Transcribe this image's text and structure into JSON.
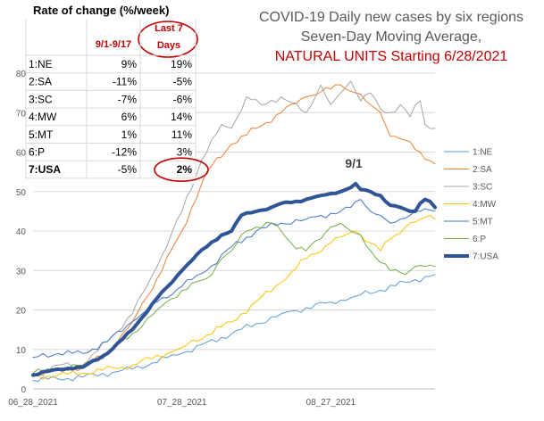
{
  "chart_data": {
    "type": "line",
    "title_lines": [
      {
        "text": "COVID-19 Daily new cases by six regions",
        "color": "#595959"
      },
      {
        "text": "Seven-Day Moving Average,",
        "color": "#595959"
      },
      {
        "text": "NATURAL UNITS Starting 6/28/2021",
        "color": "#c00000"
      }
    ],
    "xlabel": "",
    "ylabel": "",
    "ylim": [
      0,
      80
    ],
    "y_ticks": [
      0,
      10,
      20,
      30,
      40,
      50,
      60,
      70,
      80
    ],
    "x_ticks": [
      {
        "index": 0,
        "label": "06_28_2021"
      },
      {
        "index": 30,
        "label": "07_28_2021"
      },
      {
        "index": 60,
        "label": "08_27_2021"
      }
    ],
    "n_points": 82,
    "grid": true,
    "legend_position": "right",
    "annotation": {
      "text": "9/1",
      "index": 65,
      "value": 52
    },
    "series": [
      {
        "name": "1:NE",
        "color": "#5b9bd5",
        "width": 1,
        "keypoints": [
          [
            0,
            2.2
          ],
          [
            10,
            3
          ],
          [
            20,
            5
          ],
          [
            30,
            9
          ],
          [
            40,
            14
          ],
          [
            50,
            19
          ],
          [
            60,
            22
          ],
          [
            65,
            23.5
          ],
          [
            70,
            25
          ],
          [
            75,
            27
          ],
          [
            81,
            29
          ]
        ]
      },
      {
        "name": "2:SA",
        "color": "#ed7d31",
        "width": 1,
        "keypoints": [
          [
            0,
            3.5
          ],
          [
            5,
            5
          ],
          [
            10,
            5.5
          ],
          [
            15,
            9
          ],
          [
            20,
            17
          ],
          [
            25,
            28
          ],
          [
            30,
            40
          ],
          [
            35,
            55
          ],
          [
            40,
            62
          ],
          [
            45,
            66
          ],
          [
            50,
            70
          ],
          [
            55,
            74
          ],
          [
            60,
            76
          ],
          [
            62,
            77
          ],
          [
            65,
            75
          ],
          [
            68,
            72
          ],
          [
            70,
            70
          ],
          [
            72,
            64
          ],
          [
            75,
            63
          ],
          [
            78,
            60
          ],
          [
            81,
            57
          ]
        ]
      },
      {
        "name": "3:SC",
        "color": "#a5a5a5",
        "width": 1,
        "keypoints": [
          [
            0,
            3.5
          ],
          [
            5,
            6
          ],
          [
            10,
            6
          ],
          [
            15,
            12
          ],
          [
            20,
            19
          ],
          [
            25,
            31
          ],
          [
            30,
            45
          ],
          [
            34,
            58
          ],
          [
            38,
            67
          ],
          [
            40,
            66
          ],
          [
            43,
            74
          ],
          [
            46,
            72
          ],
          [
            50,
            74
          ],
          [
            55,
            70
          ],
          [
            58,
            77
          ],
          [
            60,
            72
          ],
          [
            62,
            75
          ],
          [
            64,
            78
          ],
          [
            66,
            73
          ],
          [
            68,
            75
          ],
          [
            70,
            71
          ],
          [
            72,
            70
          ],
          [
            74,
            72
          ],
          [
            76,
            69
          ],
          [
            78,
            73
          ],
          [
            79,
            67
          ],
          [
            81,
            66
          ]
        ]
      },
      {
        "name": "4:MW",
        "color": "#ffc000",
        "width": 1,
        "keypoints": [
          [
            0,
            3
          ],
          [
            10,
            4
          ],
          [
            20,
            6
          ],
          [
            30,
            10.5
          ],
          [
            40,
            17
          ],
          [
            50,
            27
          ],
          [
            55,
            33
          ],
          [
            60,
            37
          ],
          [
            65,
            40
          ],
          [
            68,
            37
          ],
          [
            70,
            35
          ],
          [
            72,
            38
          ],
          [
            75,
            41
          ],
          [
            78,
            43
          ],
          [
            80,
            44
          ],
          [
            81,
            43
          ]
        ]
      },
      {
        "name": "5:MT",
        "color": "#4472c4",
        "width": 1,
        "keypoints": [
          [
            0,
            8
          ],
          [
            5,
            9
          ],
          [
            10,
            9
          ],
          [
            15,
            12
          ],
          [
            20,
            17
          ],
          [
            25,
            22
          ],
          [
            30,
            26
          ],
          [
            35,
            30
          ],
          [
            40,
            36
          ],
          [
            45,
            40
          ],
          [
            50,
            42
          ],
          [
            55,
            43
          ],
          [
            60,
            44.5
          ],
          [
            62,
            45
          ],
          [
            64,
            46
          ],
          [
            66,
            48
          ],
          [
            68,
            45
          ],
          [
            70,
            44
          ],
          [
            72,
            42
          ],
          [
            74,
            43
          ],
          [
            76,
            44
          ],
          [
            78,
            45
          ],
          [
            81,
            45
          ]
        ]
      },
      {
        "name": "6:P",
        "color": "#70ad47",
        "width": 1,
        "keypoints": [
          [
            0,
            4
          ],
          [
            5,
            5
          ],
          [
            10,
            6
          ],
          [
            15,
            9
          ],
          [
            20,
            14
          ],
          [
            25,
            20
          ],
          [
            30,
            25
          ],
          [
            35,
            28
          ],
          [
            38,
            33
          ],
          [
            40,
            35
          ],
          [
            43,
            40
          ],
          [
            45,
            41
          ],
          [
            48,
            42
          ],
          [
            50,
            40
          ],
          [
            52,
            37
          ],
          [
            55,
            35
          ],
          [
            58,
            38
          ],
          [
            60,
            41
          ],
          [
            62,
            42
          ],
          [
            64,
            40
          ],
          [
            66,
            39
          ],
          [
            68,
            35
          ],
          [
            70,
            32
          ],
          [
            72,
            30
          ],
          [
            75,
            29
          ],
          [
            77,
            31
          ],
          [
            79,
            31
          ],
          [
            81,
            31
          ]
        ]
      },
      {
        "name": "7:USA",
        "color": "#2f5597",
        "width": 4,
        "keypoints": [
          [
            0,
            3.5
          ],
          [
            5,
            5
          ],
          [
            10,
            5.5
          ],
          [
            15,
            9
          ],
          [
            20,
            15
          ],
          [
            25,
            23
          ],
          [
            28,
            27
          ],
          [
            30,
            30
          ],
          [
            33,
            34
          ],
          [
            35,
            36
          ],
          [
            38,
            39
          ],
          [
            40,
            40
          ],
          [
            42,
            44
          ],
          [
            45,
            45
          ],
          [
            48,
            46
          ],
          [
            50,
            47
          ],
          [
            53,
            47.5
          ],
          [
            55,
            48
          ],
          [
            58,
            49
          ],
          [
            60,
            49.5
          ],
          [
            62,
            50
          ],
          [
            64,
            51
          ],
          [
            65,
            52
          ],
          [
            66,
            50.5
          ],
          [
            68,
            50
          ],
          [
            70,
            49
          ],
          [
            72,
            46.5
          ],
          [
            74,
            46
          ],
          [
            75,
            45.5
          ],
          [
            76,
            45
          ],
          [
            77,
            45
          ],
          [
            78,
            47
          ],
          [
            79,
            48
          ],
          [
            80,
            47.5
          ],
          [
            81,
            46
          ]
        ]
      }
    ]
  },
  "rate_table": {
    "title": "Rate of change (%/week)",
    "col1_header": "9/1-9/17",
    "col2_header_line1": "Last 7",
    "col2_header_line2": "Days",
    "rows": [
      {
        "region": "1:NE",
        "v1": "9%",
        "v2": "19%"
      },
      {
        "region": "2:SA",
        "v1": "-11%",
        "v2": "-5%"
      },
      {
        "region": "3:SC",
        "v1": "-7%",
        "v2": "-6%"
      },
      {
        "region": "4:MW",
        "v1": "6%",
        "v2": "14%"
      },
      {
        "region": "5:MT",
        "v1": "1%",
        "v2": "11%"
      },
      {
        "region": "6:P",
        "v1": "-12%",
        "v2": "3%"
      },
      {
        "region": "7:USA",
        "v1": "-5%",
        "v2": "2%"
      }
    ]
  }
}
